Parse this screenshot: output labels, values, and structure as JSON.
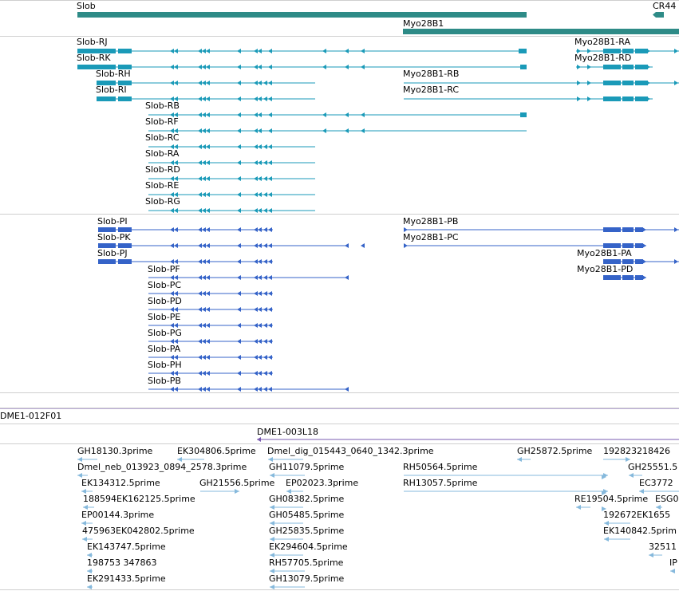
{
  "colors": {
    "gene": "#2e8b87",
    "transcript": "#1a9ab8",
    "protein": "#3563c8",
    "clone": "#7a5bb0",
    "est": "#86b9dc",
    "separator": "#cfcfcf"
  },
  "tracks": {
    "genes": {
      "items": [
        {
          "name": "Slob"
        },
        {
          "name": "CR44"
        },
        {
          "name": "Myo28B1"
        }
      ]
    },
    "transcripts": {
      "items": [
        {
          "name": "Slob-RJ"
        },
        {
          "name": "Slob-RK"
        },
        {
          "name": "Slob-RH"
        },
        {
          "name": "Slob-RI"
        },
        {
          "name": "Slob-RB"
        },
        {
          "name": "Slob-RF"
        },
        {
          "name": "Slob-RC"
        },
        {
          "name": "Slob-RA"
        },
        {
          "name": "Slob-RD"
        },
        {
          "name": "Slob-RE"
        },
        {
          "name": "Slob-RG"
        },
        {
          "name": "Myo28B1-RA"
        },
        {
          "name": "Myo28B1-RD"
        },
        {
          "name": "Myo28B1-RB"
        },
        {
          "name": "Myo28B1-RC"
        }
      ]
    },
    "proteins": {
      "items": [
        {
          "name": "Slob-PI"
        },
        {
          "name": "Slob-PK"
        },
        {
          "name": "Slob-PJ"
        },
        {
          "name": "Slob-PF"
        },
        {
          "name": "Slob-PC"
        },
        {
          "name": "Slob-PD"
        },
        {
          "name": "Slob-PE"
        },
        {
          "name": "Slob-PG"
        },
        {
          "name": "Slob-PA"
        },
        {
          "name": "Slob-PH"
        },
        {
          "name": "Slob-PB"
        },
        {
          "name": "Myo28B1-PB"
        },
        {
          "name": "Myo28B1-PC"
        },
        {
          "name": "Myo28B1-PA"
        },
        {
          "name": "Myo28B1-PD"
        }
      ]
    },
    "clones": {
      "items": [
        {
          "name": "DME1-012F01"
        },
        {
          "name": "DME1-003L18"
        }
      ]
    },
    "ests": {
      "items": [
        {
          "name": "GH18130.3prime"
        },
        {
          "name": "EK304806.5prime"
        },
        {
          "name": "Dmel_dig_015443_0640_1342.3prime"
        },
        {
          "name": "GH25872.5prime"
        },
        {
          "name": "192823218426"
        },
        {
          "name": "Dmel_neb_013923_0894_2578.3prime"
        },
        {
          "name": "GH11079.5prime"
        },
        {
          "name": "RH50564.5prime"
        },
        {
          "name": "GH25551.5"
        },
        {
          "name": "EK134312.5prime"
        },
        {
          "name": "GH21556.5prime"
        },
        {
          "name": "EP02023.3prime"
        },
        {
          "name": "RH13057.5prime"
        },
        {
          "name": "EC3772"
        },
        {
          "name": "188594EK162125.5prime"
        },
        {
          "name": "GH08382.5prime"
        },
        {
          "name": "RE19504.5prime"
        },
        {
          "name": "ESG0"
        },
        {
          "name": "EP00144.3prime"
        },
        {
          "name": "GH05485.5prime"
        },
        {
          "name": "192672EK1655"
        },
        {
          "name": "475963EK042802.5prime"
        },
        {
          "name": "GH25835.5prime"
        },
        {
          "name": "EK140842.5prim"
        },
        {
          "name": "EK143747.5prime"
        },
        {
          "name": "EK294604.5prime"
        },
        {
          "name": "32511"
        },
        {
          "name": "198753   347863"
        },
        {
          "name": "RH57705.5prime"
        },
        {
          "name": "IP"
        },
        {
          "name": "EK291433.5prime"
        },
        {
          "name": "GH13079.5prime"
        }
      ]
    }
  }
}
